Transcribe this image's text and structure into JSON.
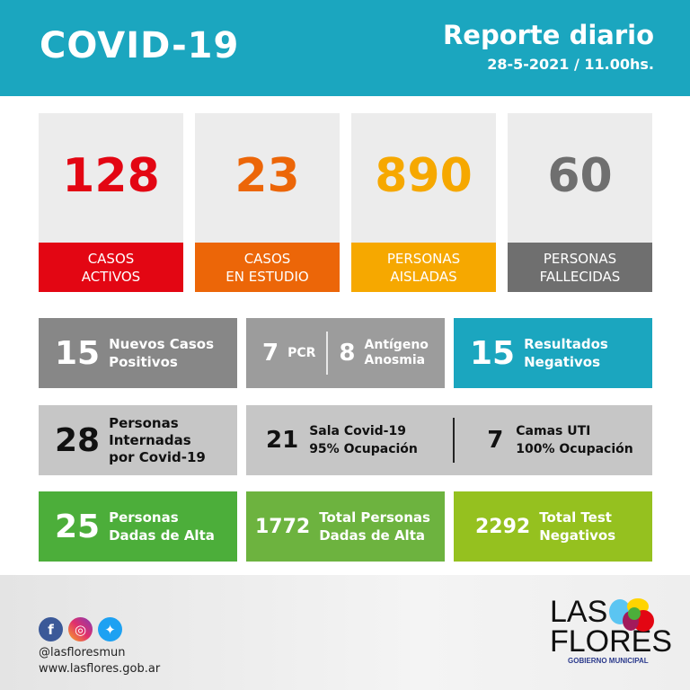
{
  "header": {
    "title": "COVID-19",
    "subtitle": "Reporte diario",
    "date": "28-5-2021 / 11.00hs."
  },
  "cards": [
    {
      "value": "128",
      "label1": "CASOS",
      "label2": "ACTIVOS",
      "color": "#e30613"
    },
    {
      "value": "23",
      "label1": "CASOS",
      "label2": "EN ESTUDIO",
      "color": "#ec6608"
    },
    {
      "value": "890",
      "label1": "PERSONAS",
      "label2": "AISLADAS",
      "color": "#f6a800"
    },
    {
      "value": "60",
      "label1": "PERSONAS",
      "label2": "FALLECIDAS",
      "color": "#6f6f6f"
    }
  ],
  "row2": {
    "nuevos": {
      "value": "15",
      "l1": "Nuevos Casos",
      "l2": "Positivos"
    },
    "pcr": {
      "value": "7",
      "label": "PCR"
    },
    "antigeno": {
      "value": "8",
      "l1": "Antígeno",
      "l2": "Anosmia"
    },
    "negativos": {
      "value": "15",
      "l1": "Resultados",
      "l2": "Negativos"
    }
  },
  "row3": {
    "internadas": {
      "value": "28",
      "l1": "Personas",
      "l2": "Internadas",
      "l3": "por Covid-19"
    },
    "sala": {
      "value": "21",
      "l1": "Sala Covid-19",
      "l2": "95% Ocupación"
    },
    "uti": {
      "value": "7",
      "l1": "Camas UTI",
      "l2": "100% Ocupación"
    }
  },
  "row4": {
    "alta": {
      "value": "25",
      "l1": "Personas",
      "l2": "Dadas de Alta"
    },
    "total_alta": {
      "value": "1772",
      "l1": "Total Personas",
      "l2": "Dadas de Alta"
    },
    "test": {
      "value": "2292",
      "l1": "Total Test",
      "l2": "Negativos"
    }
  },
  "footer": {
    "handle": "@lasfloresmun",
    "website": "www.lasflores.gob.ar",
    "logo_line1": "LAS",
    "logo_line2": "FLORES",
    "logo_sub": "GOBIERNO MUNICIPAL"
  }
}
